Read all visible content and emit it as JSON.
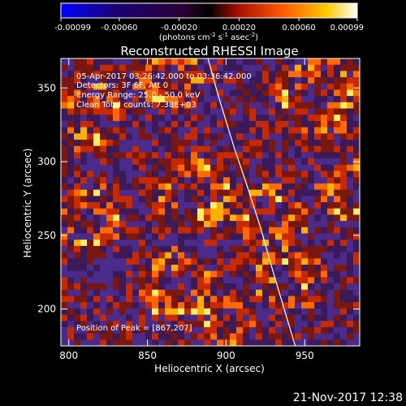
{
  "chart_data": {
    "type": "heatmap",
    "title": "Reconstructed RHESSI Image",
    "xlabel": "Heliocentric X (arcsec)",
    "ylabel": "Heliocentric Y (arcsec)",
    "xlim": [
      795,
      985
    ],
    "ylim": [
      175,
      370
    ],
    "x_ticks": [
      "800",
      "850",
      "900",
      "950"
    ],
    "y_ticks": [
      "200",
      "250",
      "300",
      "350"
    ],
    "colorbar": {
      "ticks": [
        "-0.00099",
        "-0.00060",
        "-0.00020",
        "0.00020",
        "0.00060",
        "0.00099"
      ],
      "range": [
        -0.00099,
        0.00099
      ],
      "units_line1": "(photons cm",
      "units_sup1": "-2",
      "units_mid": " s",
      "units_sup2": "-1",
      "units_end": " asec",
      "units_sup3": "-2",
      "units_close": ")"
    },
    "annotations": {
      "time": "05-Apr-2017 03:26:42.000 to 03:36:42.000",
      "detectors": "Detectors: 3F 6F, Att 0",
      "energy": "Energy Range: 25.0 - 50.0 keV",
      "clean": "Clean    Total counts: 7.38E+03",
      "peak": "Position of Peak = [867,207]"
    },
    "limb_color": "#ffffff"
  },
  "footer": {
    "timestamp": "21-Nov-2017 12:38"
  },
  "colors": {
    "background": "#000000",
    "text": "#ffffff"
  }
}
